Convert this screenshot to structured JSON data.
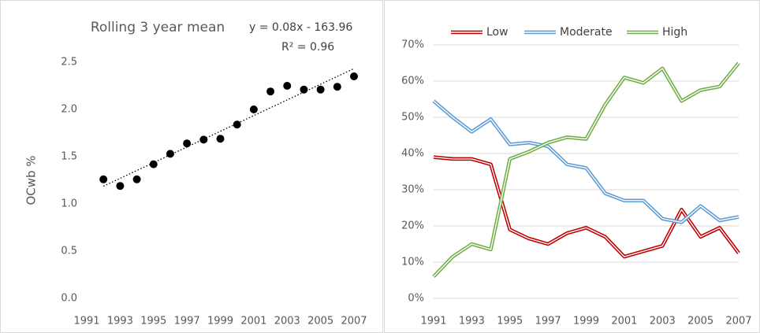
{
  "charts": [
    {
      "type": "scatter",
      "title": "Rolling 3 year mean",
      "annotations": [
        "y = 0.08x - 163.96",
        "R² = 0.96"
      ],
      "ylabel": "OCwb %",
      "x": [
        1992,
        1993,
        1994,
        1995,
        1996,
        1997,
        1998,
        1999,
        2000,
        2001,
        2002,
        2003,
        2004,
        2005,
        2006,
        2007
      ],
      "values": [
        1.26,
        1.19,
        1.26,
        1.42,
        1.53,
        1.64,
        1.68,
        1.69,
        1.84,
        2.0,
        2.19,
        2.25,
        2.21,
        2.21,
        2.24,
        2.35
      ],
      "color": "#000000",
      "trendline": true,
      "xlim": [
        1991,
        2007
      ],
      "xticks": [
        1991,
        1993,
        1995,
        1997,
        1999,
        2001,
        2003,
        2005,
        2007
      ],
      "ylim": [
        0,
        2.5
      ],
      "yticks": [
        {
          "value": 0,
          "label": "0.0"
        },
        {
          "value": 0.5,
          "label": "0.5"
        },
        {
          "value": 1,
          "label": "1.0"
        },
        {
          "value": 1.5,
          "label": "1.5"
        },
        {
          "value": 2,
          "label": "2.0"
        },
        {
          "value": 2.5,
          "label": "2.5"
        }
      ]
    },
    {
      "type": "line",
      "legend": "top",
      "x": [
        1991,
        1992,
        1993,
        1994,
        1995,
        1996,
        1997,
        1998,
        1999,
        2000,
        2001,
        2002,
        2003,
        2004,
        2005,
        2006,
        2007
      ],
      "series": [
        {
          "name": "Low",
          "color": "#c00000",
          "values": [
            39,
            38.5,
            38.5,
            37,
            19,
            16.5,
            15,
            18,
            19.5,
            17,
            11.5,
            13,
            14.5,
            24.5,
            17,
            19.5,
            12.5
          ]
        },
        {
          "name": "Moderate",
          "color": "#5b9bd5",
          "values": [
            54.5,
            50,
            46,
            49.5,
            42.5,
            43,
            42,
            37,
            36,
            29,
            27,
            27,
            22,
            21,
            25.5,
            21.5,
            22.5
          ]
        },
        {
          "name": "High",
          "color": "#70ad47",
          "values": [
            6,
            11.5,
            15,
            13.5,
            38.5,
            40.5,
            43,
            44.5,
            44,
            53.5,
            61,
            59.5,
            63.5,
            54.5,
            57.5,
            58.5,
            65
          ]
        }
      ],
      "xlim": [
        1991,
        2007
      ],
      "xticks": [
        1991,
        1993,
        1995,
        1997,
        1999,
        2001,
        2003,
        2005,
        2007
      ],
      "ylim": [
        0,
        70
      ],
      "yticks": [
        {
          "value": 0,
          "label": "0%"
        },
        {
          "value": 10,
          "label": "10%"
        },
        {
          "value": 20,
          "label": "20%"
        },
        {
          "value": 30,
          "label": "30%"
        },
        {
          "value": 40,
          "label": "40%"
        },
        {
          "value": 50,
          "label": "50%"
        },
        {
          "value": 60,
          "label": "60%"
        },
        {
          "value": 70,
          "label": "70%"
        }
      ]
    }
  ]
}
